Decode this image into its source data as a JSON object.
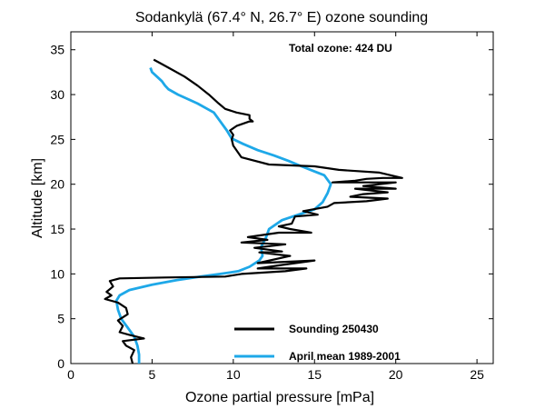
{
  "chart_data": {
    "type": "line",
    "title": "Sodankylä (67.4° N, 26.7° E)  ozone sounding",
    "xlabel": "Ozone partial pressure [mPa]",
    "ylabel": "Altitude [km]",
    "annotation": "Total ozone: 424 DU",
    "xlim": [
      0,
      26
    ],
    "ylim": [
      0,
      37
    ],
    "xticks": [
      0,
      5,
      10,
      15,
      20,
      25
    ],
    "yticks": [
      0,
      5,
      10,
      15,
      20,
      25,
      30,
      35
    ],
    "grid": false,
    "legend_position": "bottom-right",
    "series": [
      {
        "name": "Sounding 250430",
        "color": "#000000",
        "points": [
          [
            3.8,
            0.0
          ],
          [
            3.7,
            0.7
          ],
          [
            3.9,
            1.5
          ],
          [
            3.4,
            2.0
          ],
          [
            3.2,
            2.5
          ],
          [
            4.5,
            2.8
          ],
          [
            3.6,
            3.2
          ],
          [
            3.0,
            3.5
          ],
          [
            3.2,
            4.2
          ],
          [
            2.9,
            4.8
          ],
          [
            3.5,
            5.5
          ],
          [
            3.4,
            6.2
          ],
          [
            2.9,
            6.8
          ],
          [
            2.1,
            7.2
          ],
          [
            2.5,
            7.6
          ],
          [
            2.2,
            8.0
          ],
          [
            2.6,
            8.6
          ],
          [
            2.4,
            9.2
          ],
          [
            3.0,
            9.5
          ],
          [
            5.8,
            9.6
          ],
          [
            9.5,
            9.7
          ],
          [
            10.5,
            10.0
          ],
          [
            13.2,
            10.3
          ],
          [
            14.5,
            10.6
          ],
          [
            11.5,
            10.6
          ],
          [
            13.0,
            11.0
          ],
          [
            15.0,
            11.5
          ],
          [
            11.5,
            11.2
          ],
          [
            13.5,
            12.0
          ],
          [
            11.6,
            12.4
          ],
          [
            13.0,
            12.5
          ],
          [
            11.3,
            12.9
          ],
          [
            13.2,
            13.3
          ],
          [
            10.5,
            13.5
          ],
          [
            12.1,
            13.8
          ],
          [
            10.9,
            14.1
          ],
          [
            12.8,
            14.6
          ],
          [
            14.8,
            14.6
          ],
          [
            13.5,
            15.0
          ],
          [
            12.8,
            15.3
          ],
          [
            13.6,
            15.6
          ],
          [
            13.8,
            16.4
          ],
          [
            15.2,
            16.6
          ],
          [
            14.3,
            17.0
          ],
          [
            15.8,
            17.5
          ],
          [
            16.2,
            17.9
          ],
          [
            18.2,
            18.1
          ],
          [
            19.5,
            18.4
          ],
          [
            17.2,
            18.6
          ],
          [
            18.0,
            18.9
          ],
          [
            19.5,
            19.1
          ],
          [
            17.5,
            19.5
          ],
          [
            20.0,
            19.5
          ],
          [
            18.0,
            19.8
          ],
          [
            20.0,
            20.2
          ],
          [
            18.0,
            20.2
          ],
          [
            16.1,
            20.2
          ],
          [
            17.5,
            20.4
          ],
          [
            18.2,
            20.6
          ],
          [
            19.2,
            20.7
          ],
          [
            20.4,
            20.7
          ],
          [
            19.0,
            21.3
          ],
          [
            16.5,
            21.6
          ],
          [
            15.0,
            22.0
          ],
          [
            12.2,
            22.2
          ],
          [
            10.5,
            23.0
          ],
          [
            10.0,
            24.3
          ],
          [
            9.9,
            25.0
          ],
          [
            10.0,
            25.5
          ],
          [
            9.8,
            26.0
          ],
          [
            10.2,
            26.5
          ],
          [
            11.0,
            27.0
          ],
          [
            11.2,
            27.0
          ],
          [
            11.0,
            27.3
          ],
          [
            11.0,
            27.7
          ],
          [
            10.2,
            28.0
          ],
          [
            9.5,
            28.4
          ],
          [
            9.1,
            29.0
          ],
          [
            8.5,
            30.0
          ],
          [
            7.8,
            31.0
          ],
          [
            7.0,
            32.0
          ],
          [
            6.2,
            32.8
          ],
          [
            5.5,
            33.5
          ],
          [
            5.1,
            33.9
          ]
        ]
      },
      {
        "name": "April mean 1989-2001",
        "color": "#1ea8e8",
        "points": [
          [
            4.2,
            0.0
          ],
          [
            4.2,
            1.0
          ],
          [
            4.1,
            2.0
          ],
          [
            3.9,
            3.0
          ],
          [
            3.5,
            4.0
          ],
          [
            3.1,
            5.0
          ],
          [
            2.9,
            6.0
          ],
          [
            2.8,
            7.0
          ],
          [
            3.0,
            7.6
          ],
          [
            3.6,
            8.2
          ],
          [
            5.0,
            8.8
          ],
          [
            6.5,
            9.3
          ],
          [
            8.0,
            9.7
          ],
          [
            9.2,
            10.0
          ],
          [
            10.3,
            10.3
          ],
          [
            11.0,
            10.8
          ],
          [
            11.6,
            11.5
          ],
          [
            11.8,
            12.0
          ],
          [
            11.7,
            13.0
          ],
          [
            12.0,
            14.0
          ],
          [
            12.2,
            15.0
          ],
          [
            13.0,
            16.0
          ],
          [
            14.0,
            16.6
          ],
          [
            15.0,
            17.2
          ],
          [
            15.5,
            18.0
          ],
          [
            15.8,
            19.0
          ],
          [
            16.0,
            20.0
          ],
          [
            15.6,
            21.0
          ],
          [
            14.9,
            21.5
          ],
          [
            14.2,
            22.0
          ],
          [
            13.4,
            22.6
          ],
          [
            12.5,
            23.2
          ],
          [
            11.5,
            23.8
          ],
          [
            10.6,
            24.5
          ],
          [
            9.9,
            25.1
          ],
          [
            9.6,
            26.0
          ],
          [
            9.2,
            27.0
          ],
          [
            8.8,
            28.0
          ],
          [
            7.8,
            29.0
          ],
          [
            7.2,
            29.5
          ],
          [
            6.6,
            30.0
          ],
          [
            6.0,
            30.6
          ],
          [
            5.8,
            31.0
          ],
          [
            5.6,
            31.5
          ],
          [
            5.3,
            32.0
          ],
          [
            5.0,
            32.5
          ],
          [
            4.9,
            33.0
          ]
        ]
      }
    ]
  }
}
